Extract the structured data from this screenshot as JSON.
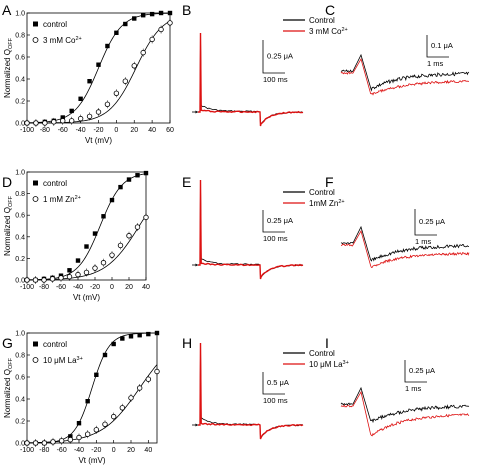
{
  "colors": {
    "black": "#000000",
    "red": "#dd1111"
  },
  "chart_data": [
    {
      "type": "scatter",
      "panel": "A",
      "ylabel": "Normalized Q",
      "ylabel_sub": "OFF",
      "xlabel": "Vt (mV)",
      "xlim": [
        -100,
        60
      ],
      "ylim": [
        0,
        1.0
      ],
      "xticks": [
        "-100",
        "-80",
        "-60",
        "-40",
        "-20",
        "0",
        "20",
        "40",
        "60"
      ],
      "yticks": [
        "0.0",
        "0.2",
        "0.4",
        "0.6",
        "0.8",
        "1.0"
      ],
      "legend_position": "top-left",
      "series": [
        {
          "name": "control",
          "marker": "filled-square",
          "fit": {
            "v_half": -20,
            "k": 13
          },
          "x": [
            -100,
            -90,
            -80,
            -70,
            -60,
            -50,
            -40,
            -30,
            -20,
            -10,
            0,
            10,
            20,
            30,
            40,
            50,
            60
          ],
          "values": [
            0.0,
            0.0,
            0.01,
            0.02,
            0.05,
            0.11,
            0.22,
            0.38,
            0.53,
            0.7,
            0.82,
            0.9,
            0.95,
            0.98,
            0.99,
            1.0,
            1.0
          ]
        },
        {
          "name": "3 mM Co",
          "sup": "2+",
          "marker": "open-circle",
          "fit": {
            "v_half": 22,
            "k": 15
          },
          "x": [
            -100,
            -90,
            -80,
            -70,
            -60,
            -50,
            -40,
            -30,
            -20,
            -10,
            0,
            10,
            20,
            30,
            40,
            50,
            60
          ],
          "values": [
            0.0,
            0.0,
            0.0,
            0.01,
            0.02,
            0.02,
            0.04,
            0.06,
            0.1,
            0.17,
            0.27,
            0.38,
            0.52,
            0.64,
            0.76,
            0.85,
            0.91
          ]
        }
      ]
    },
    {
      "type": "scatter",
      "panel": "D",
      "ylabel": "Normalized Q",
      "ylabel_sub": "OFF",
      "xlabel": "Vt (mV)",
      "xlim": [
        -100,
        40
      ],
      "ylim": [
        0,
        1.0
      ],
      "xticks": [
        "-100",
        "-80",
        "-60",
        "-40",
        "-20",
        "0",
        "20",
        "40"
      ],
      "yticks": [
        "0.0",
        "0.2",
        "0.4",
        "0.6",
        "0.8",
        "1.0"
      ],
      "legend_position": "top-left",
      "series": [
        {
          "name": "control",
          "marker": "filled-square",
          "fit": {
            "v_half": -14,
            "k": 13
          },
          "x": [
            -100,
            -90,
            -80,
            -70,
            -60,
            -50,
            -40,
            -30,
            -20,
            -10,
            0,
            10,
            20,
            30,
            40
          ],
          "values": [
            0.0,
            0.0,
            0.01,
            0.02,
            0.04,
            0.09,
            0.18,
            0.31,
            0.43,
            0.59,
            0.74,
            0.86,
            0.93,
            0.97,
            0.99
          ]
        },
        {
          "name": "1 mM Zn",
          "sup": "2+",
          "marker": "open-circle",
          "fit": {
            "v_half": 32,
            "k": 20
          },
          "x": [
            -100,
            -90,
            -80,
            -70,
            -60,
            -50,
            -40,
            -30,
            -20,
            -10,
            0,
            10,
            20,
            30,
            40
          ],
          "values": [
            0.0,
            0.0,
            0.0,
            0.01,
            0.02,
            0.03,
            0.05,
            0.07,
            0.11,
            0.16,
            0.23,
            0.32,
            0.41,
            0.49,
            0.58
          ]
        }
      ]
    },
    {
      "type": "scatter",
      "panel": "G",
      "ylabel": "Normalized Q",
      "ylabel_sub": "OFF",
      "xlabel": "Vt (mV)",
      "xlim": [
        -100,
        50
      ],
      "ylim": [
        0,
        1.0
      ],
      "xticks": [
        "-100",
        "-80",
        "-60",
        "-40",
        "-20",
        "0",
        "20",
        "40"
      ],
      "yticks": [
        "0.0",
        "0.2",
        "0.4",
        "0.6",
        "0.8",
        "1.0"
      ],
      "legend_position": "top-left",
      "series": [
        {
          "name": "control",
          "marker": "filled-square",
          "fit": {
            "v_half": -25,
            "k": 10
          },
          "x": [
            -100,
            -90,
            -80,
            -70,
            -60,
            -50,
            -40,
            -30,
            -20,
            -10,
            0,
            10,
            20,
            30,
            40,
            50
          ],
          "values": [
            0.0,
            0.0,
            0.0,
            0.01,
            0.02,
            0.06,
            0.18,
            0.38,
            0.62,
            0.8,
            0.9,
            0.95,
            0.97,
            0.98,
            0.99,
            1.0
          ]
        },
        {
          "name": "10 μM La",
          "sup": "3+",
          "marker": "open-circle",
          "fit": {
            "v_half": 30,
            "k": 22
          },
          "x": [
            -100,
            -90,
            -80,
            -70,
            -60,
            -50,
            -40,
            -30,
            -20,
            -10,
            0,
            10,
            20,
            30,
            40,
            50
          ],
          "values": [
            0.0,
            0.0,
            0.0,
            0.01,
            0.02,
            0.03,
            0.05,
            0.08,
            0.12,
            0.17,
            0.24,
            0.32,
            0.41,
            0.5,
            0.58,
            0.65
          ]
        }
      ]
    }
  ],
  "trace_panels": [
    {
      "panel": "B",
      "scale_y": "0.25 μA",
      "scale_x": "100 ms",
      "legend": [
        {
          "name": "Control"
        },
        {
          "name": "3 mM Co",
          "sup": "2+"
        }
      ]
    },
    {
      "panel": "C",
      "scale_y": "0.1 μA",
      "scale_x": "1 ms"
    },
    {
      "panel": "E",
      "scale_y": "0.25 μA",
      "scale_x": "100 ms",
      "legend": [
        {
          "name": "Control"
        },
        {
          "name": "1mM Zn",
          "sup": "2+"
        }
      ]
    },
    {
      "panel": "F",
      "scale_y": "0.25 μA",
      "scale_x": "1 ms"
    },
    {
      "panel": "H",
      "scale_y": "0.5 μA",
      "scale_x": "100 ms",
      "legend": [
        {
          "name": "Control"
        },
        {
          "name": "10 μM La",
          "sup": "3+"
        }
      ]
    },
    {
      "panel": "I",
      "scale_y": "0.25 μA",
      "scale_x": "1 ms"
    }
  ]
}
